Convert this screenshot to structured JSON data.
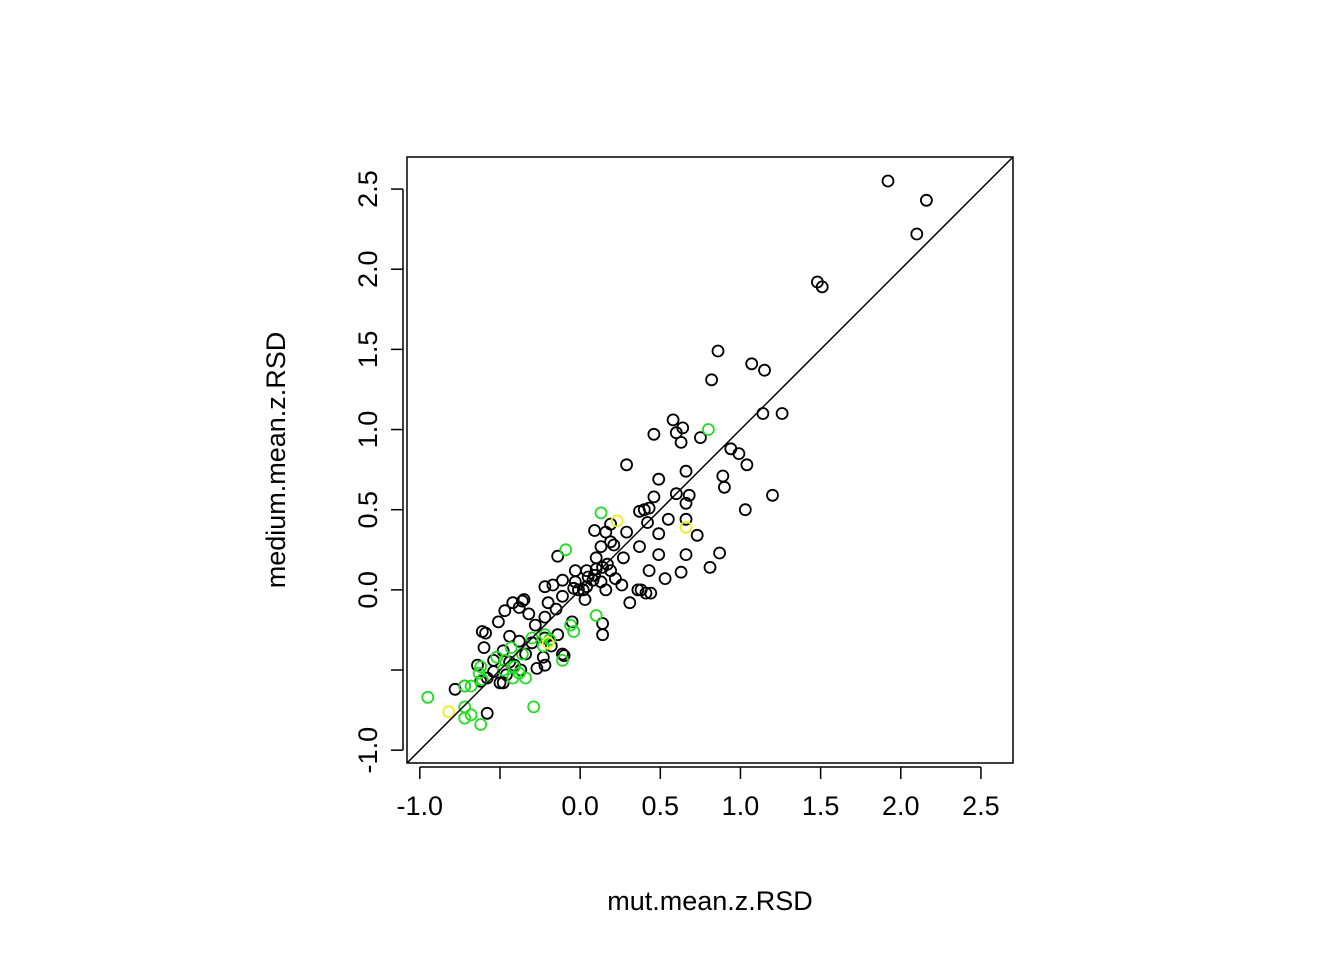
{
  "chart_data": {
    "type": "scatter",
    "title": "",
    "xlabel": "mut.mean.z.RSD",
    "ylabel": "medium.mean.z.RSD",
    "xlim": [
      -1.08,
      2.7
    ],
    "ylim": [
      -1.08,
      2.7
    ],
    "x_ticks": [
      -1.0,
      -0.5,
      0.0,
      0.5,
      1.0,
      1.5,
      2.0,
      2.5
    ],
    "x_tick_labels": [
      "-1.0",
      "",
      "0.0",
      "0.5",
      "1.0",
      "1.5",
      "2.0",
      "2.5"
    ],
    "y_ticks": [
      -1.0,
      -0.5,
      0.0,
      0.5,
      1.0,
      1.5,
      2.0,
      2.5
    ],
    "y_tick_labels": [
      "-1.0",
      "",
      "0.0",
      "0.5",
      "1.0",
      "1.5",
      "2.0",
      "2.5"
    ],
    "grid": false,
    "legend": "none",
    "reference_line": {
      "type": "identity",
      "slope": 1,
      "intercept": 0,
      "color": "#000000"
    },
    "series": [
      {
        "color": "#000000",
        "points": [
          [
            1.92,
            2.55
          ],
          [
            2.16,
            2.43
          ],
          [
            2.1,
            2.22
          ],
          [
            1.48,
            1.92
          ],
          [
            1.51,
            1.89
          ],
          [
            0.86,
            1.49
          ],
          [
            1.07,
            1.41
          ],
          [
            1.15,
            1.37
          ],
          [
            0.82,
            1.31
          ],
          [
            1.14,
            1.1
          ],
          [
            1.26,
            1.1
          ],
          [
            0.58,
            1.06
          ],
          [
            0.64,
            1.01
          ],
          [
            0.46,
            0.97
          ],
          [
            0.6,
            0.98
          ],
          [
            0.63,
            0.92
          ],
          [
            0.75,
            0.95
          ],
          [
            0.94,
            0.88
          ],
          [
            0.99,
            0.85
          ],
          [
            1.04,
            0.78
          ],
          [
            0.29,
            0.78
          ],
          [
            0.89,
            0.71
          ],
          [
            0.49,
            0.69
          ],
          [
            0.66,
            0.74
          ],
          [
            0.9,
            0.64
          ],
          [
            0.6,
            0.6
          ],
          [
            0.68,
            0.59
          ],
          [
            0.46,
            0.58
          ],
          [
            1.2,
            0.59
          ],
          [
            0.66,
            0.54
          ],
          [
            1.03,
            0.5
          ],
          [
            0.4,
            0.5
          ],
          [
            0.37,
            0.49
          ],
          [
            0.43,
            0.51
          ],
          [
            0.55,
            0.44
          ],
          [
            0.42,
            0.42
          ],
          [
            0.66,
            0.44
          ],
          [
            0.19,
            0.41
          ],
          [
            0.16,
            0.36
          ],
          [
            0.29,
            0.36
          ],
          [
            0.49,
            0.35
          ],
          [
            0.73,
            0.34
          ],
          [
            0.09,
            0.37
          ],
          [
            0.19,
            0.3
          ],
          [
            0.21,
            0.28
          ],
          [
            0.37,
            0.27
          ],
          [
            0.13,
            0.27
          ],
          [
            0.87,
            0.23
          ],
          [
            0.66,
            0.22
          ],
          [
            0.49,
            0.22
          ],
          [
            -0.14,
            0.21
          ],
          [
            0.27,
            0.2
          ],
          [
            0.1,
            0.2
          ],
          [
            0.81,
            0.14
          ],
          [
            0.63,
            0.11
          ],
          [
            0.43,
            0.12
          ],
          [
            0.17,
            0.16
          ],
          [
            0.14,
            0.14
          ],
          [
            0.19,
            0.12
          ],
          [
            0.1,
            0.13
          ],
          [
            0.04,
            0.12
          ],
          [
            -0.03,
            0.12
          ],
          [
            0.53,
            0.07
          ],
          [
            0.22,
            0.07
          ],
          [
            0.26,
            0.03
          ],
          [
            0.09,
            0.09
          ],
          [
            0.13,
            0.05
          ],
          [
            0.08,
            0.06
          ],
          [
            0.05,
            0.08
          ],
          [
            -0.03,
            0.05
          ],
          [
            -0.11,
            0.06
          ],
          [
            0.04,
            0.02
          ],
          [
            -0.01,
            0.0
          ],
          [
            0.36,
            0.0
          ],
          [
            0.44,
            -0.02
          ],
          [
            0.38,
            0.0
          ],
          [
            0.41,
            -0.02
          ],
          [
            0.02,
            0.0
          ],
          [
            0.16,
            0.0
          ],
          [
            -0.17,
            0.03
          ],
          [
            -0.22,
            0.02
          ],
          [
            -0.04,
            0.01
          ],
          [
            0.31,
            -0.08
          ],
          [
            0.03,
            -0.06
          ],
          [
            -0.35,
            -0.06
          ],
          [
            -0.42,
            -0.08
          ],
          [
            -0.36,
            -0.07
          ],
          [
            -0.11,
            -0.04
          ],
          [
            -0.2,
            -0.08
          ],
          [
            -0.38,
            -0.11
          ],
          [
            -0.15,
            -0.12
          ],
          [
            -0.47,
            -0.13
          ],
          [
            -0.32,
            -0.15
          ],
          [
            -0.22,
            -0.17
          ],
          [
            -0.51,
            -0.2
          ],
          [
            -0.05,
            -0.2
          ],
          [
            0.14,
            -0.21
          ],
          [
            -0.28,
            -0.22
          ],
          [
            0.14,
            -0.28
          ],
          [
            -0.61,
            -0.26
          ],
          [
            -0.59,
            -0.27
          ],
          [
            -0.44,
            -0.29
          ],
          [
            -0.38,
            -0.32
          ],
          [
            -0.22,
            -0.3
          ],
          [
            -0.14,
            -0.28
          ],
          [
            -0.18,
            -0.35
          ],
          [
            -0.3,
            -0.33
          ],
          [
            -0.6,
            -0.36
          ],
          [
            -0.48,
            -0.38
          ],
          [
            -0.34,
            -0.4
          ],
          [
            -0.23,
            -0.42
          ],
          [
            -0.11,
            -0.4
          ],
          [
            -0.1,
            -0.41
          ],
          [
            -0.54,
            -0.44
          ],
          [
            -0.44,
            -0.45
          ],
          [
            -0.41,
            -0.47
          ],
          [
            -0.22,
            -0.47
          ],
          [
            -0.64,
            -0.47
          ],
          [
            -0.27,
            -0.49
          ],
          [
            -0.37,
            -0.5
          ],
          [
            -0.54,
            -0.51
          ],
          [
            -0.46,
            -0.53
          ],
          [
            -0.58,
            -0.55
          ],
          [
            -0.62,
            -0.57
          ],
          [
            -0.48,
            -0.58
          ],
          [
            -0.5,
            -0.58
          ],
          [
            -0.72,
            -0.6
          ],
          [
            -0.58,
            -0.77
          ],
          [
            -0.78,
            -0.62
          ]
        ]
      },
      {
        "color": "#22dd22",
        "points": [
          [
            0.8,
            1.0
          ],
          [
            0.13,
            0.48
          ],
          [
            -0.09,
            0.25
          ],
          [
            0.1,
            -0.16
          ],
          [
            -0.06,
            -0.22
          ],
          [
            -0.04,
            -0.26
          ],
          [
            -0.22,
            -0.28
          ],
          [
            -0.19,
            -0.31
          ],
          [
            -0.23,
            -0.35
          ],
          [
            -0.3,
            -0.3
          ],
          [
            -0.11,
            -0.44
          ],
          [
            -0.43,
            -0.36
          ],
          [
            -0.36,
            -0.4
          ],
          [
            -0.47,
            -0.44
          ],
          [
            -0.52,
            -0.42
          ],
          [
            -0.41,
            -0.48
          ],
          [
            -0.62,
            -0.48
          ],
          [
            -0.63,
            -0.52
          ],
          [
            -0.48,
            -0.5
          ],
          [
            -0.42,
            -0.55
          ],
          [
            -0.34,
            -0.55
          ],
          [
            -0.38,
            -0.52
          ],
          [
            -0.61,
            -0.56
          ],
          [
            -0.68,
            -0.6
          ],
          [
            -0.72,
            -0.6
          ],
          [
            -0.95,
            -0.67
          ],
          [
            -0.72,
            -0.73
          ],
          [
            -0.29,
            -0.73
          ],
          [
            -0.68,
            -0.78
          ],
          [
            -0.72,
            -0.8
          ],
          [
            -0.62,
            -0.84
          ]
        ]
      },
      {
        "color": "#eeee22",
        "points": [
          [
            0.23,
            0.43
          ],
          [
            0.66,
            0.39
          ],
          [
            -0.2,
            -0.33
          ],
          [
            -0.82,
            -0.76
          ]
        ]
      }
    ]
  }
}
